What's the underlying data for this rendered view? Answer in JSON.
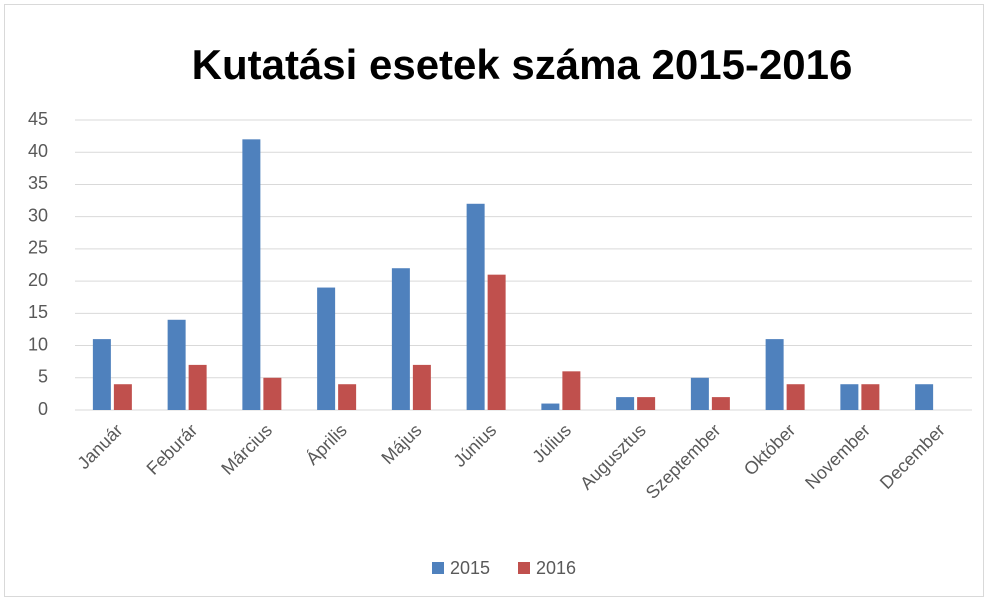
{
  "chart_data": {
    "type": "bar",
    "title": "Kutatási esetek száma 2015-2016",
    "categories": [
      "Január",
      "Feburár",
      "Március",
      "Április",
      "Május",
      "Június",
      "Július",
      "Augusztus",
      "Szeptember",
      "Október",
      "November",
      "December"
    ],
    "series": [
      {
        "name": "2015",
        "color": "#4f81bd",
        "values": [
          11,
          14,
          42,
          19,
          22,
          32,
          1,
          2,
          5,
          11,
          4,
          4
        ]
      },
      {
        "name": "2016",
        "color": "#c0504d",
        "values": [
          4,
          7,
          5,
          4,
          7,
          21,
          6,
          2,
          2,
          4,
          4,
          null
        ]
      }
    ],
    "ylim": [
      0,
      45
    ],
    "yticks": [
      0,
      5,
      10,
      15,
      20,
      25,
      30,
      35,
      40,
      45
    ],
    "grid": true,
    "legend": "bottom"
  }
}
